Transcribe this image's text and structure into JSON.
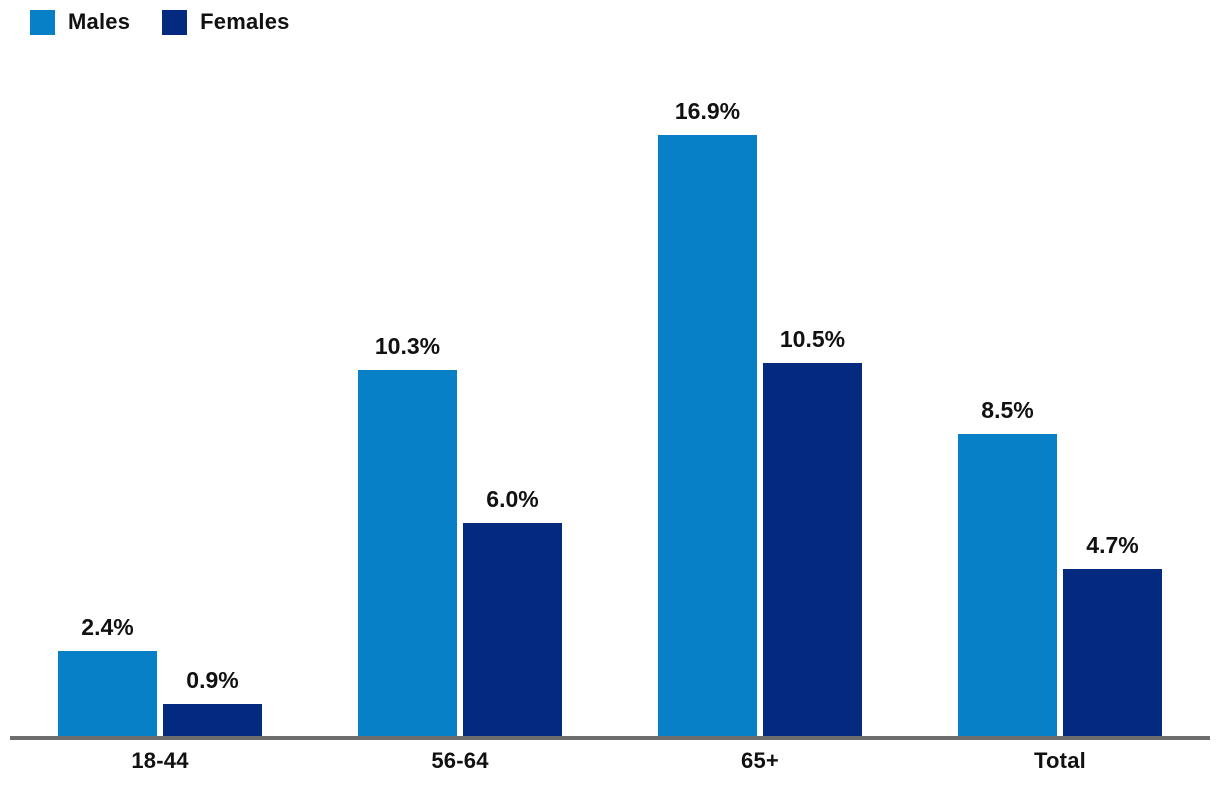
{
  "chart_data": {
    "type": "bar",
    "categories": [
      "18-44",
      "56-64",
      "65+",
      "Total"
    ],
    "series": [
      {
        "name": "Males",
        "color": "#0780c8",
        "values": [
          2.4,
          10.3,
          16.9,
          8.5
        ],
        "labels": [
          "2.4%",
          "10.3%",
          "16.9%",
          "8.5%"
        ]
      },
      {
        "name": "Females",
        "color": "#032a7e",
        "values": [
          0.9,
          6.0,
          10.5,
          4.7
        ],
        "labels": [
          "0.9%",
          "6.0%",
          "10.5%",
          "4.7%"
        ]
      }
    ],
    "title": "",
    "xlabel": "",
    "ylabel": "",
    "ylim": [
      0,
      20.7
    ],
    "grid": false,
    "legend_position": "top-left",
    "axis_color": "#6d6d6d",
    "value_label_format": "percent-one-decimal"
  }
}
